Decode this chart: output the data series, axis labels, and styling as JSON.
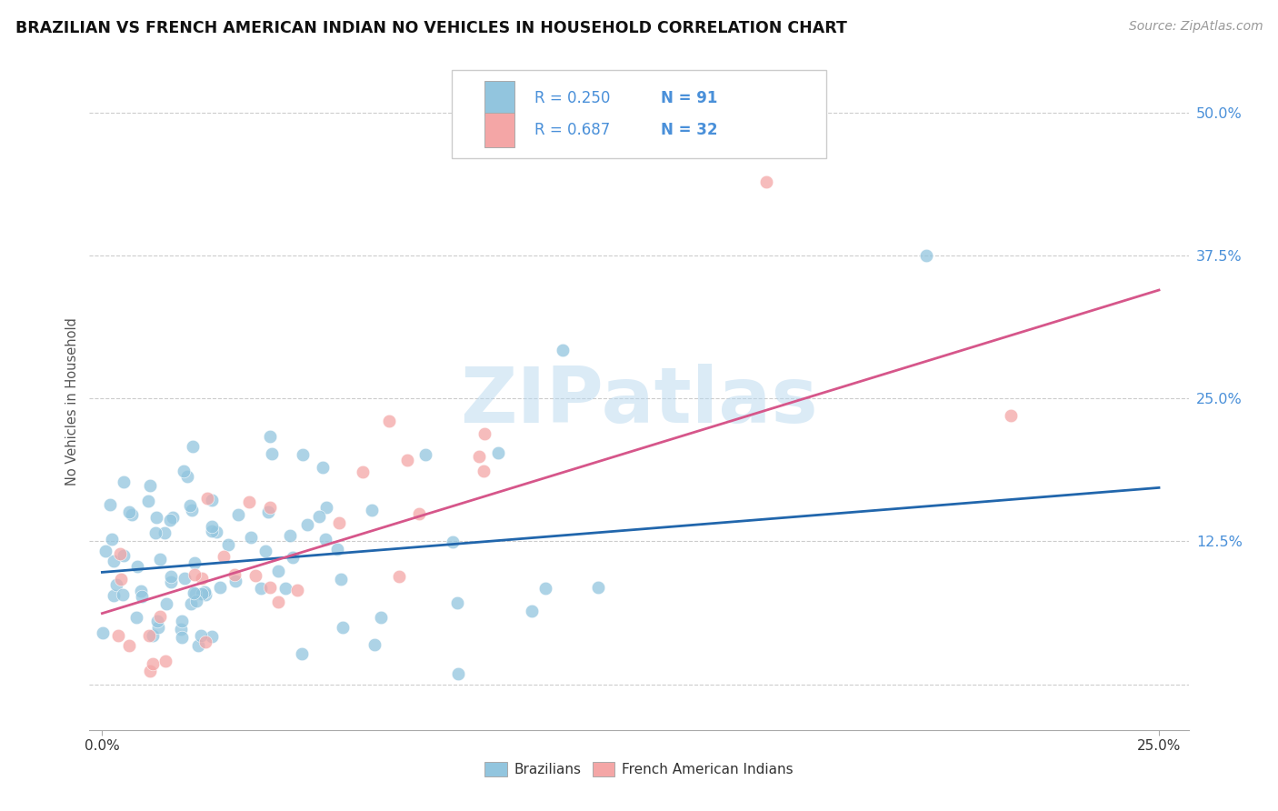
{
  "title": "BRAZILIAN VS FRENCH AMERICAN INDIAN NO VEHICLES IN HOUSEHOLD CORRELATION CHART",
  "source": "Source: ZipAtlas.com",
  "ylabel_label": "No Vehicles in Household",
  "xlim": [
    -0.003,
    0.257
  ],
  "ylim": [
    -0.04,
    0.535
  ],
  "ytick_vals": [
    0.0,
    0.125,
    0.25,
    0.375,
    0.5
  ],
  "ytick_labels": [
    "",
    "12.5%",
    "25.0%",
    "37.5%",
    "50.0%"
  ],
  "xtick_vals": [
    0.0,
    0.25
  ],
  "xtick_labels": [
    "0.0%",
    "25.0%"
  ],
  "watermark": "ZIPatlas",
  "legend_r1": "R = 0.250",
  "legend_n1": "N = 91",
  "legend_r2": "R = 0.687",
  "legend_n2": "N = 32",
  "legend_label1": "Brazilians",
  "legend_label2": "French American Indians",
  "blue_color": "#92c5de",
  "pink_color": "#f4a6a6",
  "trend_blue_color": "#2166ac",
  "trend_pink_color": "#d6568a",
  "tick_color": "#4a90d9",
  "background_color": "#ffffff",
  "title_fontsize": 12.5,
  "source_fontsize": 10,
  "blue_trend_x": [
    0.0,
    0.25
  ],
  "blue_trend_y": [
    0.098,
    0.172
  ],
  "pink_trend_x": [
    0.0,
    0.25
  ],
  "pink_trend_y": [
    0.062,
    0.345
  ]
}
